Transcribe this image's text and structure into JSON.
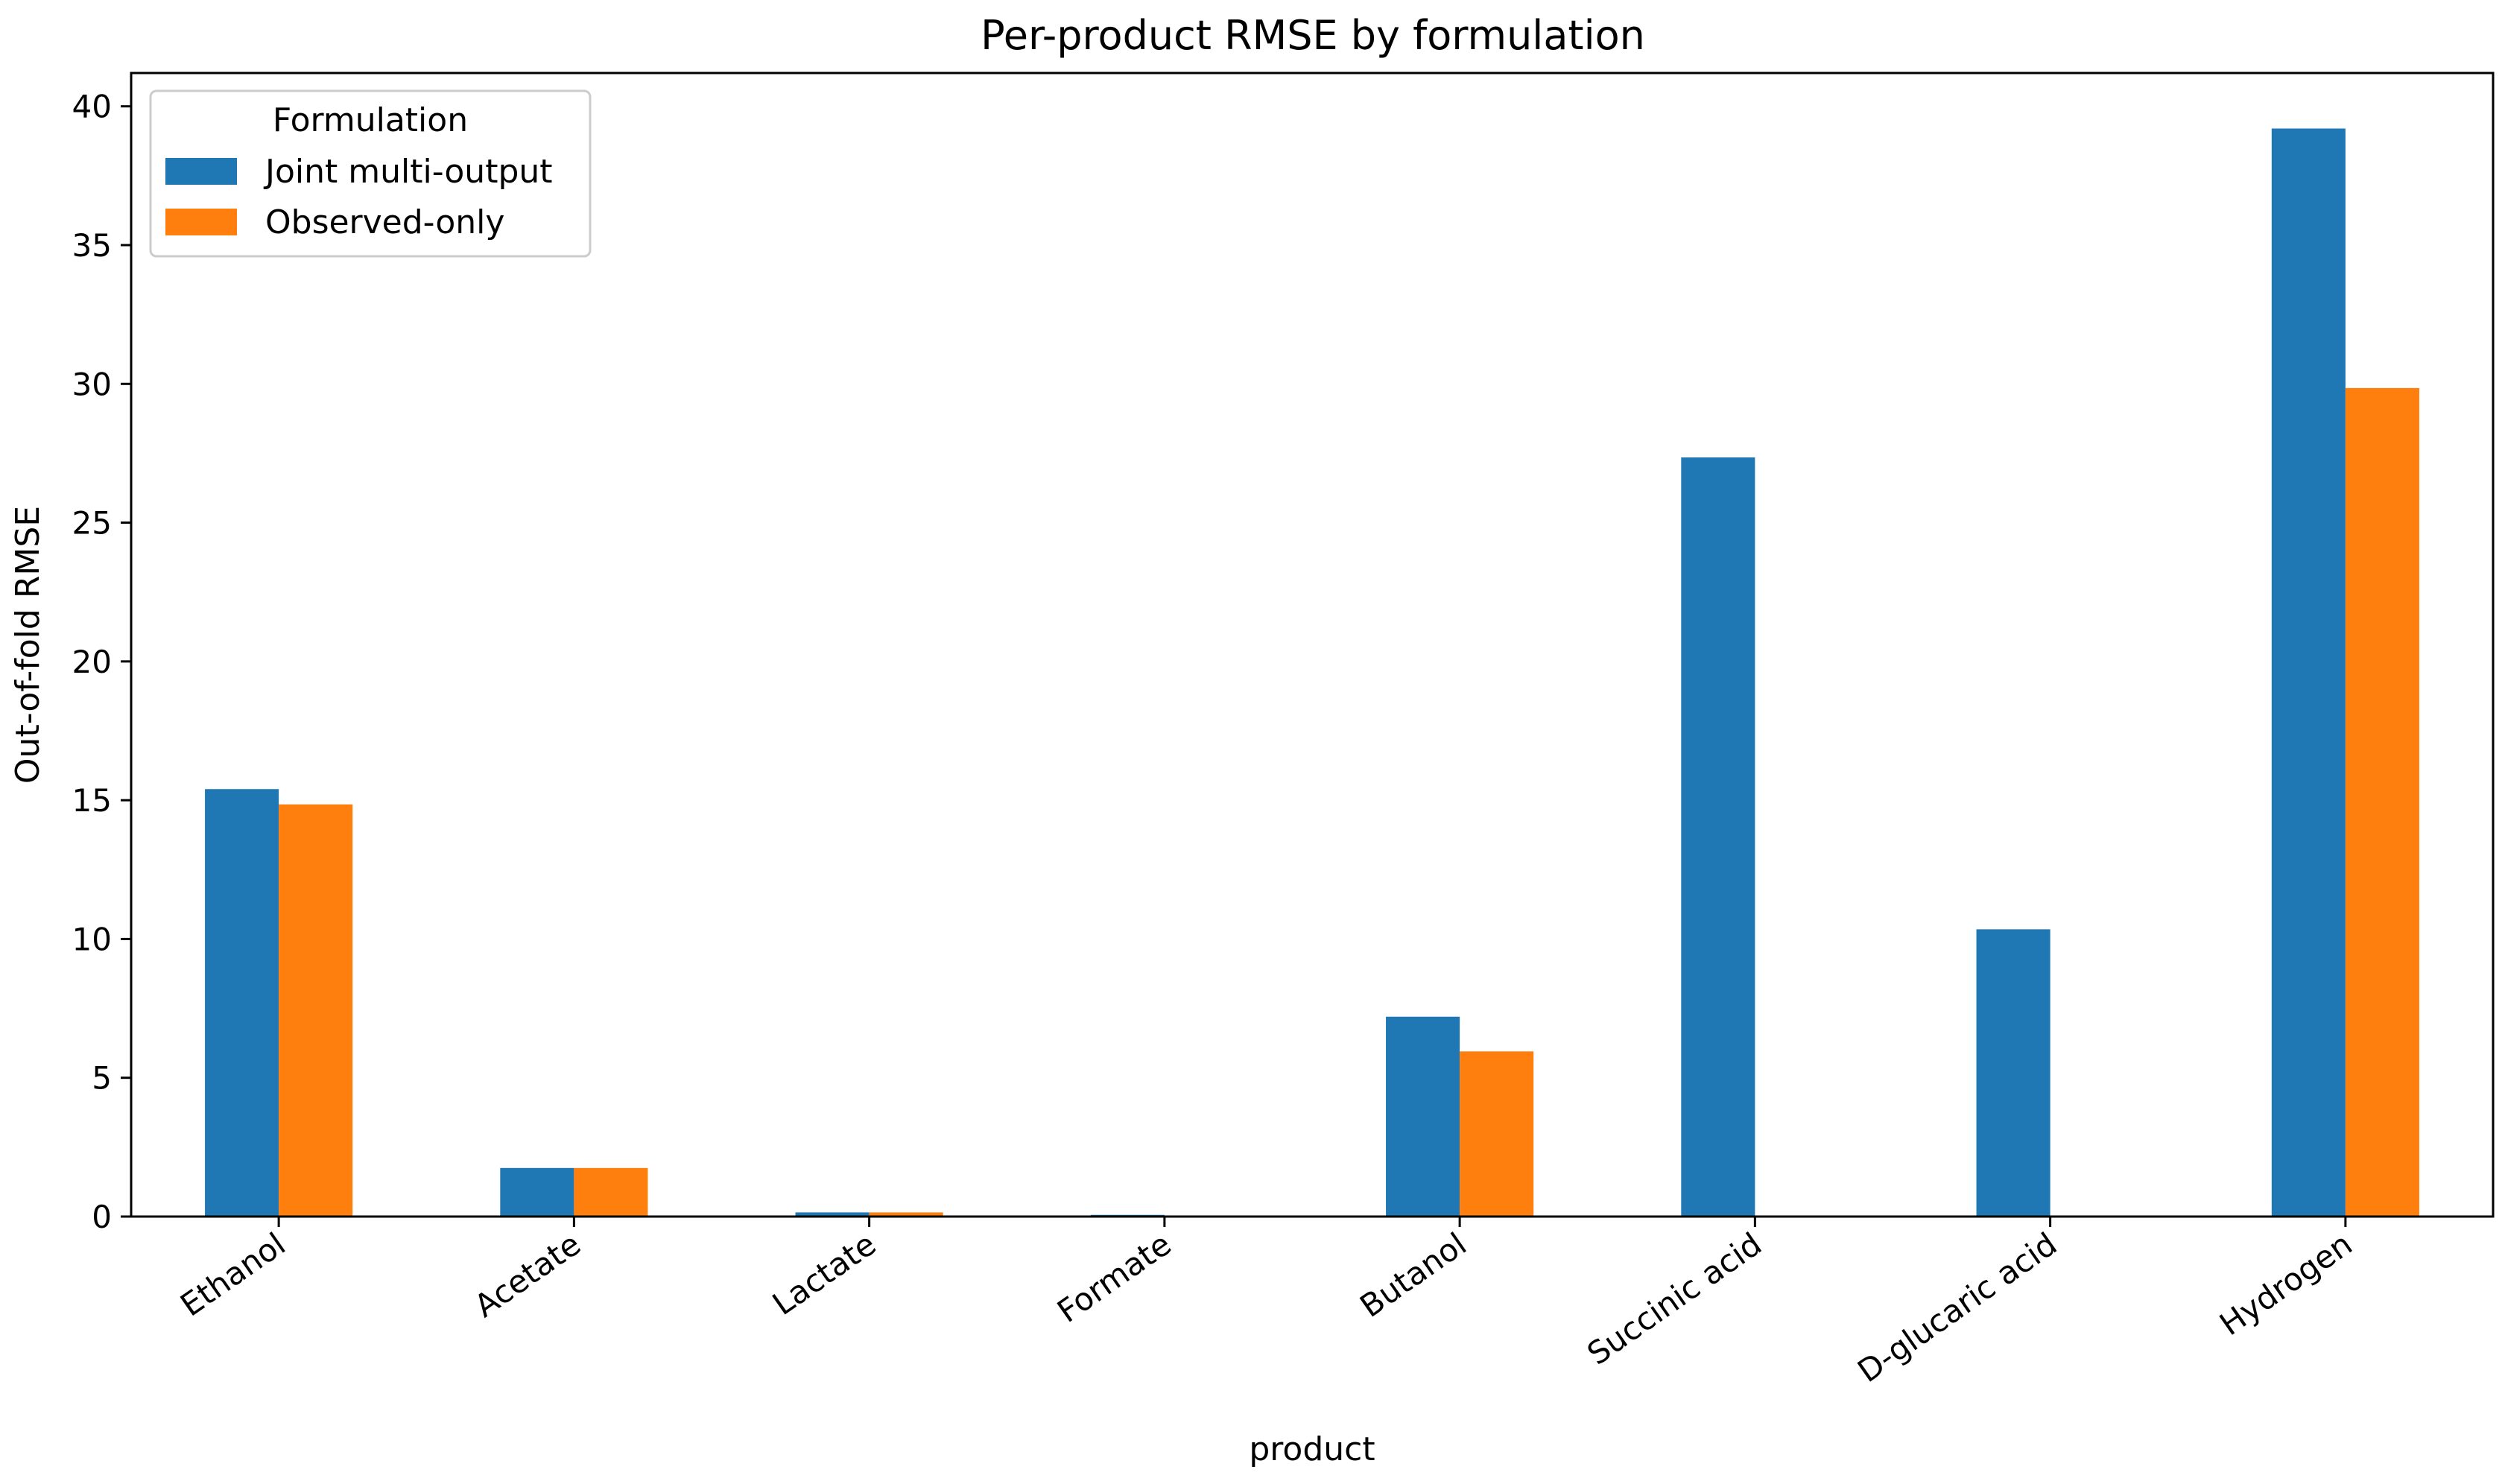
{
  "chart_data": {
    "type": "bar",
    "title": "Per-product RMSE by formulation",
    "xlabel": "product",
    "ylabel": "Out-of-fold RMSE",
    "ylim": [
      0,
      41.2
    ],
    "yticks": [
      0,
      5,
      10,
      15,
      20,
      25,
      30,
      35,
      40
    ],
    "grid": false,
    "categories": [
      "Ethanol",
      "Acetate",
      "Lactate",
      "Formate",
      "Butanol",
      "Succinic acid",
      "D-glucaric acid",
      "Hydrogen"
    ],
    "series": [
      {
        "name": "Joint multi-output",
        "color": "#1f77b4",
        "values": [
          15.4,
          1.75,
          0.15,
          0.06,
          7.2,
          27.35,
          10.35,
          39.2
        ]
      },
      {
        "name": "Observed-only",
        "color": "#ff7f0e",
        "values": [
          14.85,
          1.75,
          0.15,
          null,
          5.95,
          null,
          null,
          29.85
        ]
      }
    ],
    "legend": {
      "title": "Formulation",
      "placement": "top-left"
    }
  }
}
